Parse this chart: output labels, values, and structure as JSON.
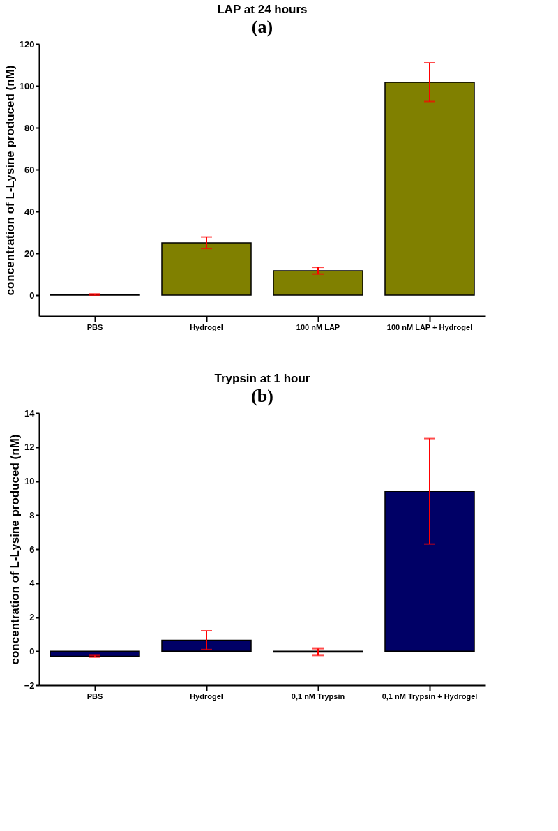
{
  "chart_data": [
    {
      "type": "bar",
      "title": "LAP at 24 hours",
      "subtitle": "(a)",
      "ylabel": "concentration of L-Lysine produced (nM)",
      "categories": [
        "PBS",
        "Hydrogel",
        "100 nM LAP",
        "100 nM LAP + Hydrogel"
      ],
      "values": [
        0.3,
        25,
        11.7,
        101.7
      ],
      "color": "#808000",
      "errors": [
        [
          0.0,
          0.6
        ],
        [
          22.3,
          27.8
        ],
        [
          10.1,
          13.3
        ],
        [
          92.5,
          111
        ]
      ],
      "ylim": [
        -10,
        120
      ],
      "yticks": [
        0,
        20,
        40,
        60,
        80,
        100,
        120
      ],
      "grid": false
    },
    {
      "type": "bar",
      "title": "Trypsin at 1 hour",
      "subtitle": "(b)",
      "ylabel": "concentration of L-Lysine produced (nM)",
      "categories": [
        "PBS",
        "Hydrogel",
        "0,1 nM Trypsin",
        "0,1 nM Trypsin + Hydrogel"
      ],
      "values": [
        -0.3,
        0.65,
        -0.05,
        9.4
      ],
      "color": "#000066",
      "errors": [
        [
          -0.35,
          -0.25
        ],
        [
          0.1,
          1.2
        ],
        [
          -0.25,
          0.15
        ],
        [
          6.3,
          12.5
        ]
      ],
      "ylim": [
        -2,
        14
      ],
      "yticks": [
        -2,
        0,
        2,
        4,
        6,
        8,
        10,
        12,
        14
      ],
      "grid": false
    }
  ]
}
